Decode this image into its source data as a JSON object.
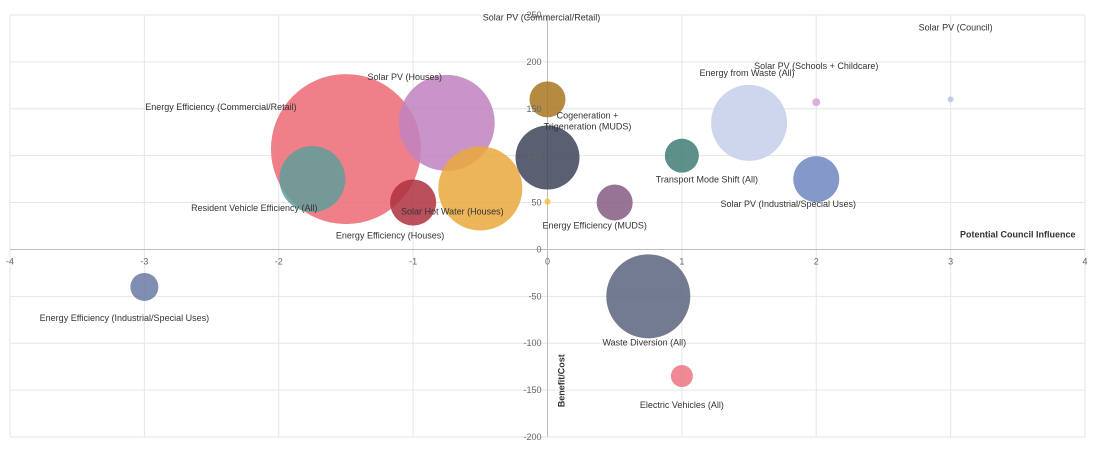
{
  "chart_data": {
    "type": "bubble",
    "xlabel": "Potential Council Influence",
    "ylabel": "Benefit/Cost",
    "xlim": [
      -4,
      4
    ],
    "ylim": [
      -200,
      250
    ],
    "x_ticks": [
      -4,
      -3,
      -2,
      -1,
      0,
      1,
      2,
      3,
      4
    ],
    "y_ticks": [
      -200,
      -150,
      -100,
      -50,
      0,
      50,
      100,
      150,
      200,
      250
    ],
    "grid": true,
    "legend": "none",
    "series": [
      {
        "label": "Energy Efficiency (Commercial/Retail)",
        "x": -1.5,
        "y": 107,
        "size": 75,
        "color": "#ec6a74"
      },
      {
        "label": "Solar PV (Houses)",
        "x": -0.75,
        "y": 135,
        "size": 48,
        "color": "#bf82c0"
      },
      {
        "label": "Solar PV (Commercial/Retail)",
        "x": 0,
        "y": 160,
        "size": 18,
        "color": "#a87620"
      },
      {
        "label": "Cogeneration + Trigeneration (MUDS)",
        "x": 0,
        "y": 98,
        "size": 32,
        "color": "#3d4459"
      },
      {
        "label": "Energy from Waste  (All)",
        "x": 1.5,
        "y": 135,
        "size": 38,
        "color": "#c5cfeb"
      },
      {
        "label": "Solar PV (Council)",
        "x": 3,
        "y": 160,
        "size": 3,
        "color": "#b9c3e6"
      },
      {
        "label": "Solar PV (Schools + Childcare)",
        "x": 2,
        "y": 157,
        "size": 4,
        "color": "#d8a2d8"
      },
      {
        "label": "Resident Vehicle Efficiency (All)",
        "x": -1.75,
        "y": 75,
        "size": 33,
        "color": "#5e9e99"
      },
      {
        "label": "Solar Hot Water (Houses)",
        "x": -0.5,
        "y": 65,
        "size": 42,
        "color": "#eaa83c"
      },
      {
        "label": "Energy Efficiency (Houses)",
        "x": -1,
        "y": 50,
        "size": 23,
        "color": "#ad313e"
      },
      {
        "label": "Transport Mode Shift (All)",
        "x": 1,
        "y": 100,
        "size": 17,
        "color": "#3f7c74"
      },
      {
        "label": "Energy Efficiency (MUDS)",
        "x": 0.5,
        "y": 50,
        "size": 18,
        "color": "#855b82"
      },
      {
        "label": "",
        "x": 0,
        "y": 51,
        "size": 3,
        "color": "#f2c23a"
      },
      {
        "label": "Solar PV (Industrial/Special Uses)",
        "x": 2,
        "y": 75,
        "size": 23,
        "color": "#6f86c1"
      },
      {
        "label": "Energy Efficiency (Industrial/Special Uses)",
        "x": -3,
        "y": -40,
        "size": 14,
        "color": "#6b7aa6"
      },
      {
        "label": "Waste Diversion (All)",
        "x": 0.75,
        "y": -50,
        "size": 42,
        "color": "#5b647e"
      },
      {
        "label": "Electric Vehicles (All)",
        "x": 1,
        "y": -135,
        "size": 11,
        "color": "#ec7682"
      }
    ]
  }
}
